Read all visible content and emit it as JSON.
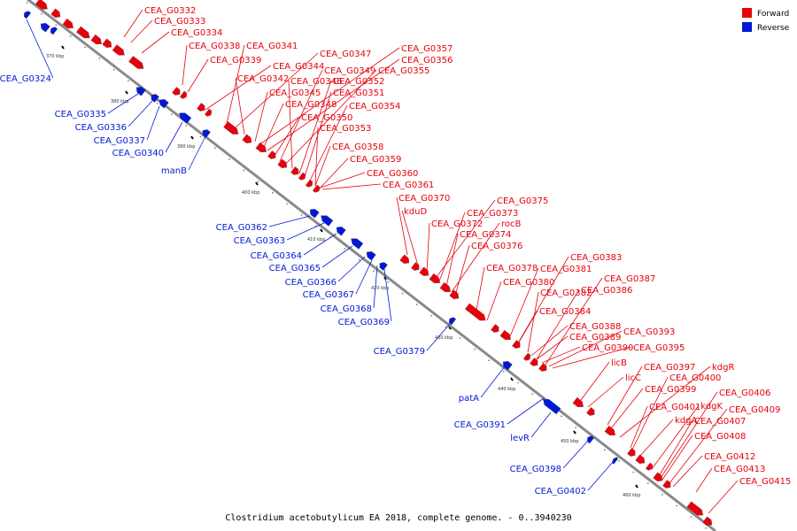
{
  "caption": "Clostridium acetobutylicum EA 2018, complete genome. - 0..3940230",
  "legend": {
    "forward": "Forward",
    "reverse": "Reverse"
  },
  "colors": {
    "forward": "#e8000b",
    "reverse": "#0019d6",
    "backbone": "#8a8a8a"
  },
  "ticks": [
    "370 kbp",
    "380 kbp",
    "390 kbp",
    "400 kbp",
    "410 kbp",
    "420 kbp",
    "430 kbp",
    "440 kbp",
    "450 kbp",
    "460 kbp"
  ],
  "genes": {
    "forward": [
      "CEA_G0332",
      "CEA_G0333",
      "CEA_G0334",
      "CEA_G0338",
      "CEA_G0341",
      "CEA_G0339",
      "CEA_G0347",
      "CEA_G0357",
      "CEA_G0356",
      "CEA_G0344",
      "CEA_G0349",
      "CEA_G0355",
      "CEA_G0342",
      "CEA_G0346",
      "CEA_G0352",
      "CEA_G0345",
      "CEA_G0351",
      "CEA_G0348",
      "CEA_G0354",
      "CEA_G0350",
      "CEA_G0353",
      "CEA_G0358",
      "CEA_G0359",
      "CEA_G0360",
      "CEA_G0361",
      "CEA_G0375",
      "CEA_G0370",
      "CEA_G0373",
      "kduD",
      "CEA_G0372",
      "rocB",
      "CEA_G0374",
      "CEA_G0376",
      "CEA_G0383",
      "CEA_G0378",
      "CEA_G0381",
      "CEA_G0387",
      "CEA_G0380",
      "CEA_G0382",
      "CEA_G0386",
      "CEA_G0384",
      "CEA_G0388",
      "CEA_G0393",
      "CEA_G0389",
      "CEA_G0390",
      "CEA_G0395",
      "licB",
      "kdgR",
      "CEA_G0397",
      "licC",
      "CEA_G0400",
      "CEA_G0399",
      "CEA_G0406",
      "kdgK",
      "CEA_G0401",
      "CEA_G0409",
      "kdgA",
      "CEA_G0407",
      "CEA_G0408",
      "CEA_G0412",
      "CEA_G0413",
      "CEA_G0415"
    ],
    "reverse": [
      "CEA_G0324",
      "CEA_G0335",
      "CEA_G0336",
      "CEA_G0337",
      "CEA_G0340",
      "manB",
      "CEA_G0362",
      "CEA_G0363",
      "CEA_G0364",
      "CEA_G0365",
      "CEA_G0366",
      "CEA_G0367",
      "CEA_G0368",
      "CEA_G0369",
      "CEA_G0379",
      "patA",
      "CEA_G0391",
      "levR",
      "CEA_G0398",
      "CEA_G0402"
    ]
  }
}
